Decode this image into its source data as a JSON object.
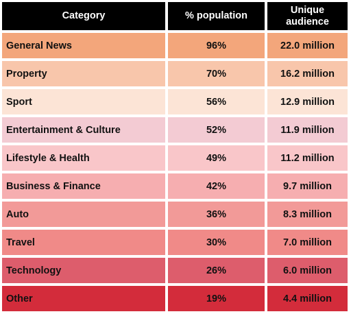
{
  "chart_data": {
    "type": "table",
    "columns": [
      "Category",
      "% population",
      "Unique audience"
    ],
    "header_lines": {
      "audience": [
        "Unique",
        "audience"
      ]
    },
    "rows": [
      {
        "category": "General News",
        "pct": "96%",
        "audience": "22.0 million",
        "color": "#f3a67b"
      },
      {
        "category": "Property",
        "pct": "70%",
        "audience": "16.2 million",
        "color": "#f8c6ab"
      },
      {
        "category": "Sport",
        "pct": "56%",
        "audience": "12.9 million",
        "color": "#fce4d6"
      },
      {
        "category": "Entertainment & Culture",
        "pct": "52%",
        "audience": "11.9 million",
        "color": "#f3cbd3"
      },
      {
        "category": "Lifestyle & Health",
        "pct": "49%",
        "audience": "11.2 million",
        "color": "#f9c6c9"
      },
      {
        "category": "Business & Finance",
        "pct": "42%",
        "audience": "9.7 million",
        "color": "#f6aeb0"
      },
      {
        "category": "Auto",
        "pct": "36%",
        "audience": "8.3 million",
        "color": "#f29a98"
      },
      {
        "category": "Travel",
        "pct": "30%",
        "audience": "7.0 million",
        "color": "#f08a88"
      },
      {
        "category": "Technology",
        "pct": "26%",
        "audience": "6.0 million",
        "color": "#dd5d6c"
      },
      {
        "category": "Other",
        "pct": "19%",
        "audience": "4.4 million",
        "color": "#d32c3b"
      }
    ]
  }
}
